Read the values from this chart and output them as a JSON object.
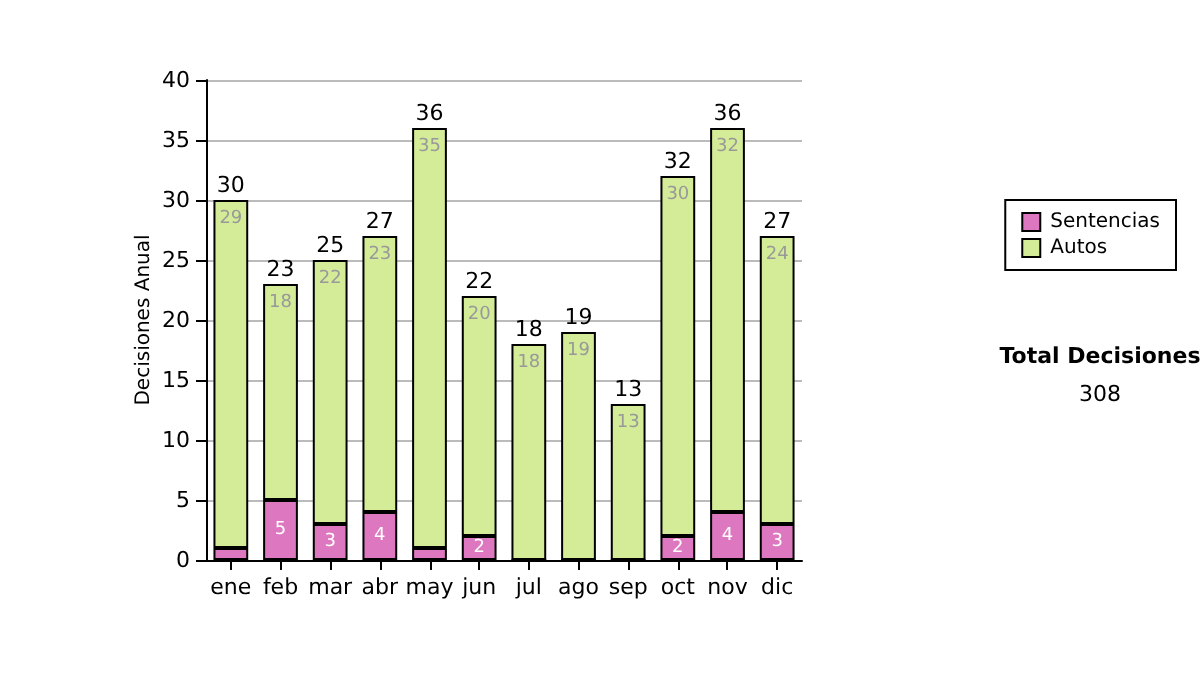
{
  "chart_data": {
    "type": "bar",
    "stacked": true,
    "ylabel": "Decisiones Anual",
    "categories": [
      "ene",
      "feb",
      "mar",
      "abr",
      "may",
      "jun",
      "jul",
      "ago",
      "sep",
      "oct",
      "nov",
      "dic"
    ],
    "series": [
      {
        "name": "Sentencias",
        "color": "#dd77c0",
        "values": [
          1,
          5,
          3,
          4,
          1,
          2,
          0,
          0,
          0,
          2,
          4,
          3
        ],
        "value_labels": [
          null,
          "5",
          "3",
          "4",
          null,
          "2",
          null,
          null,
          null,
          "2",
          "4",
          "3"
        ]
      },
      {
        "name": "Autos",
        "color": "#d4ec98",
        "values": [
          29,
          18,
          22,
          23,
          35,
          20,
          18,
          19,
          13,
          30,
          32,
          24
        ],
        "value_labels": [
          "29",
          "18",
          "22",
          "23",
          "35",
          "20",
          "18",
          "19",
          "13",
          "30",
          "32",
          "24"
        ]
      }
    ],
    "totals": [
      "30",
      "23",
      "25",
      "27",
      "36",
      "22",
      "18",
      "19",
      "13",
      "32",
      "36",
      "27"
    ],
    "ylim": [
      0,
      40
    ],
    "yticks": [
      0,
      5,
      10,
      15,
      20,
      25,
      30,
      35,
      40
    ],
    "grid": "y",
    "legend": "right",
    "annotations": [
      "Total Decisiones",
      "308"
    ]
  }
}
